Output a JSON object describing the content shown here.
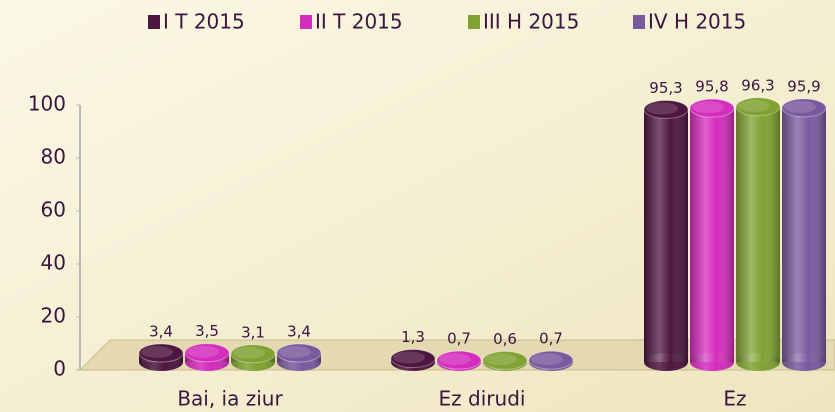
{
  "chart_data": {
    "type": "bar",
    "categories": [
      "Bai, ia ziur",
      "Ez dirudi",
      "Ez"
    ],
    "series": [
      {
        "name": "I T 2015",
        "color": "#4d1640",
        "values": [
          3.4,
          1.3,
          95.3
        ],
        "value_labels": [
          "3,4",
          "1,3",
          "95,3"
        ]
      },
      {
        "name": "II T 2015",
        "color": "#d42cbc",
        "values": [
          3.5,
          0.7,
          95.8
        ],
        "value_labels": [
          "3,5",
          "0,7",
          "95,8"
        ]
      },
      {
        "name": "III H 2015",
        "color": "#7fa232",
        "values": [
          3.1,
          0.6,
          96.3
        ],
        "value_labels": [
          "3,1",
          "0,6",
          "96,3"
        ]
      },
      {
        "name": "IV H 2015",
        "color": "#7a5a9e",
        "values": [
          3.4,
          0.7,
          95.9
        ],
        "value_labels": [
          "3,4",
          "0,7",
          "95,9"
        ]
      }
    ],
    "ylim": [
      0,
      100
    ],
    "yticks": [
      0,
      20,
      40,
      60,
      80,
      100
    ],
    "legend": "top"
  }
}
